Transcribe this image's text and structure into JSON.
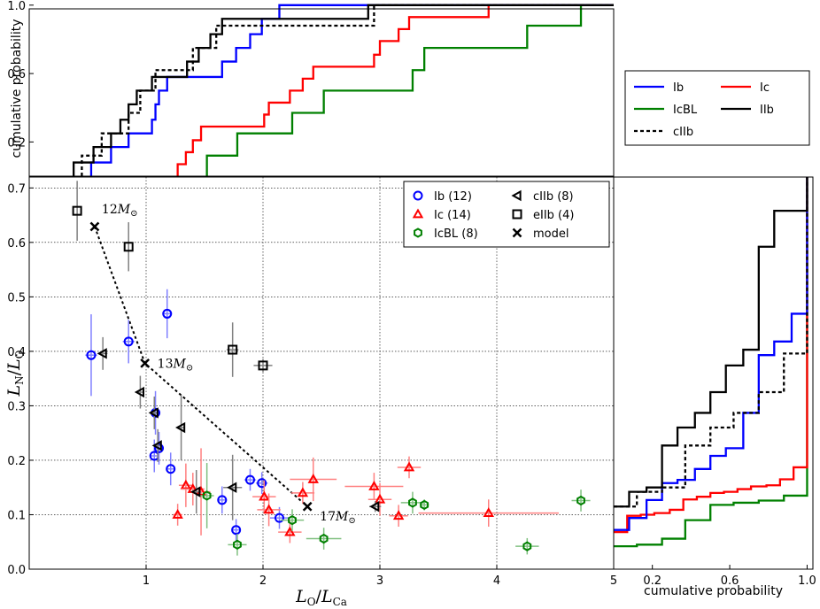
{
  "chart_data": [
    {
      "id": "main",
      "type": "scatter",
      "xlabel": "L_O/L_Ca",
      "ylabel": "L_N/L_O",
      "xlim": [
        0.0,
        5.0
      ],
      "ylim": [
        0.0,
        0.72
      ],
      "xticks": [
        1,
        2,
        3,
        4,
        5
      ],
      "yticks": [
        0.0,
        0.1,
        0.2,
        0.3,
        0.4,
        0.5,
        0.6,
        0.7
      ],
      "xtick_labels": [
        "1",
        "2",
        "3",
        "4",
        "5"
      ],
      "ytick_labels": [
        "0.0",
        "0.1",
        "0.2",
        "0.3",
        "0.4",
        "0.5",
        "0.6",
        "0.7"
      ],
      "grid": true,
      "legend_position": "top-right",
      "legend": [
        {
          "key": "Ib",
          "label": "Ib (12)",
          "marker": "circle",
          "color": "#0000ff"
        },
        {
          "key": "cIIb",
          "label": "cIIb (8)",
          "marker": "triangle-left",
          "color": "#000000"
        },
        {
          "key": "Ic",
          "label": "Ic (14)",
          "marker": "triangle-up",
          "color": "#ff0000"
        },
        {
          "key": "eIIb",
          "label": "eIIb (4)",
          "marker": "square",
          "color": "#000000"
        },
        {
          "key": "IcBL",
          "label": "IcBL (8)",
          "marker": "hexagon",
          "color": "#008000"
        },
        {
          "key": "model",
          "label": "model",
          "marker": "x",
          "color": "#000000"
        }
      ],
      "series": [
        {
          "name": "Ib",
          "color": "#0000ff",
          "errcolor": "#8080ff",
          "marker": "circle",
          "points": [
            {
              "x": 0.53,
              "y": 0.393,
              "xerr": 0.05,
              "yerr": 0.075
            },
            {
              "x": 0.85,
              "y": 0.418,
              "xerr": 0.05,
              "yerr": 0.04
            },
            {
              "x": 1.18,
              "y": 0.469,
              "xerr": 0.03,
              "yerr": 0.045
            },
            {
              "x": 1.08,
              "y": 0.287,
              "xerr": 0.03,
              "yerr": 0.04
            },
            {
              "x": 1.07,
              "y": 0.208,
              "xerr": 0.03,
              "yerr": 0.03
            },
            {
              "x": 1.11,
              "y": 0.222,
              "xerr": 0.03,
              "yerr": 0.03
            },
            {
              "x": 1.21,
              "y": 0.184,
              "xerr": 0.03,
              "yerr": 0.03
            },
            {
              "x": 1.65,
              "y": 0.127,
              "xerr": 0.04,
              "yerr": 0.025
            },
            {
              "x": 1.77,
              "y": 0.072,
              "xerr": 0.03,
              "yerr": 0.02
            },
            {
              "x": 1.89,
              "y": 0.164,
              "xerr": 0.05,
              "yerr": 0.02
            },
            {
              "x": 1.99,
              "y": 0.158,
              "xerr": 0.05,
              "yerr": 0.02
            },
            {
              "x": 2.14,
              "y": 0.094,
              "xerr": 0.08,
              "yerr": 0.02
            }
          ]
        },
        {
          "name": "Ic",
          "color": "#ff0000",
          "errcolor": "#ff8080",
          "marker": "triangle-up",
          "points": [
            {
              "x": 1.27,
              "y": 0.1,
              "xerr": 0.04,
              "yerr": 0.02
            },
            {
              "x": 1.34,
              "y": 0.154,
              "xerr": 0.06,
              "yerr": 0.04
            },
            {
              "x": 1.4,
              "y": 0.147,
              "xerr": 0.1,
              "yerr": 0.03
            },
            {
              "x": 1.47,
              "y": 0.142,
              "xerr": 0.08,
              "yerr": 0.08
            },
            {
              "x": 2.01,
              "y": 0.133,
              "xerr": 0.1,
              "yerr": 0.03
            },
            {
              "x": 2.05,
              "y": 0.109,
              "xerr": 0.1,
              "yerr": 0.03
            },
            {
              "x": 2.23,
              "y": 0.068,
              "xerr": 0.1,
              "yerr": 0.02
            },
            {
              "x": 2.34,
              "y": 0.14,
              "xerr": 0.1,
              "yerr": 0.02
            },
            {
              "x": 2.43,
              "y": 0.165,
              "xerr": 0.2,
              "yerr": 0.04
            },
            {
              "x": 2.95,
              "y": 0.152,
              "xerr": 0.25,
              "yerr": 0.025
            },
            {
              "x": 3.0,
              "y": 0.128,
              "xerr": 0.1,
              "yerr": 0.03
            },
            {
              "x": 3.16,
              "y": 0.098,
              "xerr": 0.08,
              "yerr": 0.02
            },
            {
              "x": 3.25,
              "y": 0.187,
              "xerr": 0.1,
              "yerr": 0.02
            },
            {
              "x": 3.93,
              "y": 0.103,
              "xerr": 0.6,
              "yerr": 0.025
            }
          ]
        },
        {
          "name": "IcBL",
          "color": "#008000",
          "errcolor": "#80c080",
          "marker": "hexagon",
          "points": [
            {
              "x": 1.52,
              "y": 0.135,
              "xerr": 0.06,
              "yerr": 0.06
            },
            {
              "x": 1.78,
              "y": 0.045,
              "xerr": 0.08,
              "yerr": 0.02
            },
            {
              "x": 2.25,
              "y": 0.09,
              "xerr": 0.1,
              "yerr": 0.02
            },
            {
              "x": 2.52,
              "y": 0.056,
              "xerr": 0.15,
              "yerr": 0.02
            },
            {
              "x": 3.28,
              "y": 0.122,
              "xerr": 0.1,
              "yerr": 0.02
            },
            {
              "x": 3.38,
              "y": 0.118,
              "xerr": 0.04,
              "yerr": 0.01
            },
            {
              "x": 4.26,
              "y": 0.042,
              "xerr": 0.1,
              "yerr": 0.015
            },
            {
              "x": 4.72,
              "y": 0.126,
              "xerr": 0.08,
              "yerr": 0.02
            }
          ]
        },
        {
          "name": "cIIb",
          "color": "#000000",
          "errcolor": "#808080",
          "marker": "triangle-left",
          "points": [
            {
              "x": 0.63,
              "y": 0.396,
              "xerr": 0.04,
              "yerr": 0.03
            },
            {
              "x": 0.95,
              "y": 0.325,
              "xerr": 0.03,
              "yerr": 0.03
            },
            {
              "x": 1.07,
              "y": 0.287,
              "xerr": 0.03,
              "yerr": 0.03
            },
            {
              "x": 1.1,
              "y": 0.227,
              "xerr": 0.03,
              "yerr": 0.03
            },
            {
              "x": 1.3,
              "y": 0.26,
              "xerr": 0.03,
              "yerr": 0.06
            },
            {
              "x": 1.43,
              "y": 0.142,
              "xerr": 0.04,
              "yerr": 0.04
            },
            {
              "x": 1.74,
              "y": 0.15,
              "xerr": 0.08,
              "yerr": 0.06
            },
            {
              "x": 2.96,
              "y": 0.115,
              "xerr": 0.05,
              "yerr": 0.01
            }
          ]
        },
        {
          "name": "eIIb",
          "color": "#000000",
          "errcolor": "#808080",
          "marker": "square",
          "points": [
            {
              "x": 0.41,
              "y": 0.658,
              "xerr": 0.0,
              "yerr": 0.055
            },
            {
              "x": 0.85,
              "y": 0.592,
              "xerr": 0.0,
              "yerr": 0.045
            },
            {
              "x": 1.74,
              "y": 0.403,
              "xerr": 0.05,
              "yerr": 0.05
            },
            {
              "x": 2.0,
              "y": 0.374,
              "xerr": 0.08,
              "yerr": 0.012
            }
          ]
        }
      ],
      "model": {
        "points": [
          {
            "x": 0.56,
            "y": 0.629,
            "label": "12"
          },
          {
            "x": 0.99,
            "y": 0.378,
            "label": "13"
          },
          {
            "x": 2.38,
            "y": 0.115,
            "label": "17"
          }
        ],
        "unit": "M⊙"
      }
    },
    {
      "id": "top",
      "type": "line",
      "title": "",
      "ylabel": "cumulative probability",
      "yticks_labels": [
        "0.2",
        "0.6",
        "1.0"
      ],
      "ylim": [
        0.0,
        1.03
      ],
      "xlim": [
        0.0,
        5.0
      ],
      "series": [
        {
          "name": "IIb",
          "color": "#000000",
          "dash": false,
          "steps": [
            [
              0.38,
              0.08
            ],
            [
              0.55,
              0.17
            ],
            [
              0.7,
              0.25
            ],
            [
              0.78,
              0.33
            ],
            [
              0.85,
              0.42
            ],
            [
              0.92,
              0.5
            ],
            [
              1.05,
              0.58
            ],
            [
              1.35,
              0.67
            ],
            [
              1.45,
              0.75
            ],
            [
              1.55,
              0.83
            ],
            [
              1.65,
              0.92
            ],
            [
              2.9,
              1.0
            ],
            [
              5.0,
              1.0
            ]
          ]
        },
        {
          "name": "cIIb",
          "color": "#000000",
          "dash": true,
          "steps": [
            [
              0.45,
              0.12
            ],
            [
              0.62,
              0.25
            ],
            [
              0.85,
              0.37
            ],
            [
              0.95,
              0.5
            ],
            [
              1.08,
              0.62
            ],
            [
              1.4,
              0.75
            ],
            [
              1.6,
              0.88
            ],
            [
              2.95,
              1.0
            ],
            [
              5.0,
              1.0
            ]
          ]
        },
        {
          "name": "Ib",
          "color": "#0000ff",
          "dash": false,
          "steps": [
            [
              0.53,
              0.08
            ],
            [
              0.7,
              0.17
            ],
            [
              0.85,
              0.25
            ],
            [
              1.05,
              0.33
            ],
            [
              1.08,
              0.42
            ],
            [
              1.11,
              0.5
            ],
            [
              1.18,
              0.58
            ],
            [
              1.65,
              0.67
            ],
            [
              1.77,
              0.75
            ],
            [
              1.89,
              0.83
            ],
            [
              1.99,
              0.92
            ],
            [
              2.14,
              1.0
            ],
            [
              5.0,
              1.0
            ]
          ]
        },
        {
          "name": "Ic",
          "color": "#ff0000",
          "dash": false,
          "steps": [
            [
              1.27,
              0.07
            ],
            [
              1.34,
              0.14
            ],
            [
              1.4,
              0.21
            ],
            [
              1.47,
              0.29
            ],
            [
              2.01,
              0.36
            ],
            [
              2.05,
              0.43
            ],
            [
              2.23,
              0.5
            ],
            [
              2.34,
              0.57
            ],
            [
              2.43,
              0.64
            ],
            [
              2.95,
              0.71
            ],
            [
              3.0,
              0.79
            ],
            [
              3.16,
              0.86
            ],
            [
              3.25,
              0.93
            ],
            [
              3.93,
              1.0
            ],
            [
              5.0,
              1.0
            ]
          ]
        },
        {
          "name": "IcBL",
          "color": "#008000",
          "dash": false,
          "steps": [
            [
              1.52,
              0.12
            ],
            [
              1.78,
              0.25
            ],
            [
              2.25,
              0.37
            ],
            [
              2.52,
              0.5
            ],
            [
              3.28,
              0.62
            ],
            [
              3.38,
              0.75
            ],
            [
              4.26,
              0.88
            ],
            [
              4.72,
              1.0
            ],
            [
              5.0,
              1.0
            ]
          ]
        }
      ],
      "legend": [
        {
          "label": "Ib",
          "color": "#0000ff",
          "dash": false
        },
        {
          "label": "Ic",
          "color": "#ff0000",
          "dash": false
        },
        {
          "label": "IcBL",
          "color": "#008000",
          "dash": false
        },
        {
          "label": "IIb",
          "color": "#000000",
          "dash": false
        },
        {
          "label": "cIIb",
          "color": "#000000",
          "dash": true
        }
      ]
    },
    {
      "id": "right",
      "type": "line",
      "xlabel": "cumulative probability",
      "xticks_labels": [
        "0.2",
        "0.6",
        "1.0"
      ],
      "xlim": [
        0.0,
        1.03
      ],
      "ylim": [
        0.0,
        0.72
      ],
      "series": [
        {
          "name": "IIb",
          "color": "#000000",
          "dash": false,
          "steps": [
            [
              0.115,
              0.08
            ],
            [
              0.142,
              0.17
            ],
            [
              0.15,
              0.25
            ],
            [
              0.227,
              0.33
            ],
            [
              0.26,
              0.42
            ],
            [
              0.287,
              0.5
            ],
            [
              0.325,
              0.58
            ],
            [
              0.374,
              0.67
            ],
            [
              0.403,
              0.75
            ],
            [
              0.592,
              0.83
            ],
            [
              0.658,
              1.0
            ]
          ]
        },
        {
          "name": "cIIb",
          "color": "#000000",
          "dash": true,
          "steps": [
            [
              0.115,
              0.12
            ],
            [
              0.142,
              0.25
            ],
            [
              0.15,
              0.37
            ],
            [
              0.227,
              0.5
            ],
            [
              0.26,
              0.62
            ],
            [
              0.287,
              0.75
            ],
            [
              0.325,
              0.88
            ],
            [
              0.396,
              1.0
            ]
          ]
        },
        {
          "name": "Ib",
          "color": "#0000ff",
          "dash": false,
          "steps": [
            [
              0.072,
              0.08
            ],
            [
              0.094,
              0.17
            ],
            [
              0.127,
              0.25
            ],
            [
              0.158,
              0.33
            ],
            [
              0.164,
              0.42
            ],
            [
              0.184,
              0.5
            ],
            [
              0.208,
              0.58
            ],
            [
              0.222,
              0.67
            ],
            [
              0.287,
              0.75
            ],
            [
              0.393,
              0.83
            ],
            [
              0.418,
              0.92
            ],
            [
              0.469,
              1.0
            ]
          ]
        },
        {
          "name": "Ic",
          "color": "#ff0000",
          "dash": false,
          "steps": [
            [
              0.068,
              0.07
            ],
            [
              0.098,
              0.14
            ],
            [
              0.1,
              0.21
            ],
            [
              0.103,
              0.29
            ],
            [
              0.109,
              0.36
            ],
            [
              0.128,
              0.43
            ],
            [
              0.133,
              0.5
            ],
            [
              0.14,
              0.57
            ],
            [
              0.142,
              0.64
            ],
            [
              0.147,
              0.71
            ],
            [
              0.152,
              0.79
            ],
            [
              0.154,
              0.86
            ],
            [
              0.165,
              0.93
            ],
            [
              0.187,
              1.0
            ]
          ]
        },
        {
          "name": "IcBL",
          "color": "#008000",
          "dash": false,
          "steps": [
            [
              0.042,
              0.12
            ],
            [
              0.045,
              0.25
            ],
            [
              0.056,
              0.37
            ],
            [
              0.09,
              0.5
            ],
            [
              0.118,
              0.62
            ],
            [
              0.122,
              0.75
            ],
            [
              0.126,
              0.88
            ],
            [
              0.135,
              1.0
            ]
          ]
        }
      ]
    }
  ]
}
